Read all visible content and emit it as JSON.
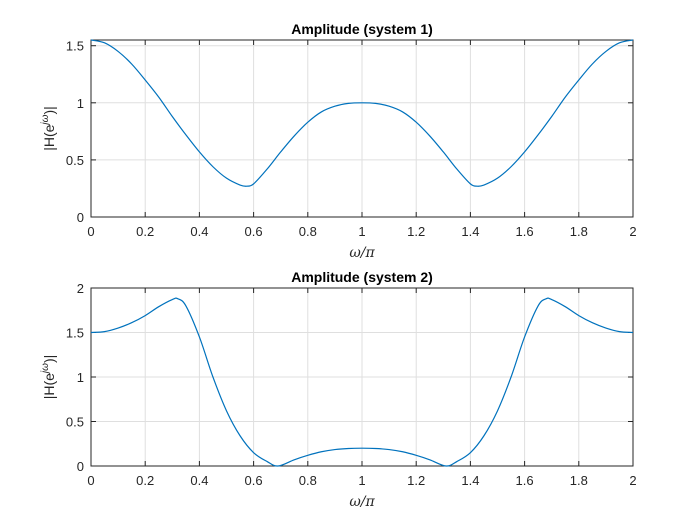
{
  "chart_data": [
    {
      "type": "line",
      "title": "Amplitude (system 1)",
      "xlabel_main": "ω/π",
      "ylabel_main": "|H(e",
      "ylabel_sup": "jω",
      "ylabel_tail": ")|",
      "xlim": [
        0,
        2
      ],
      "ylim": [
        0,
        1.55
      ],
      "xticks": [
        0,
        0.2,
        0.4,
        0.6,
        0.8,
        1,
        1.2,
        1.4,
        1.6,
        1.8,
        2
      ],
      "xtick_labels": [
        "0",
        "0.2",
        "0.4",
        "0.6",
        "0.8",
        "1",
        "1.2",
        "1.4",
        "1.6",
        "1.8",
        "2"
      ],
      "yticks": [
        0,
        0.5,
        1,
        1.5
      ],
      "ytick_labels": [
        "0",
        "0.5",
        "1",
        "1.5"
      ],
      "grid": true,
      "color": "#0072bd",
      "series": [
        {
          "x": [
            0,
            0.05,
            0.1,
            0.15,
            0.2,
            0.25,
            0.3,
            0.35,
            0.4,
            0.45,
            0.5,
            0.55,
            0.575,
            0.6,
            0.65,
            0.7,
            0.75,
            0.8,
            0.85,
            0.9,
            0.95,
            1.0,
            1.05,
            1.1,
            1.15,
            1.2,
            1.25,
            1.3,
            1.35,
            1.4,
            1.425,
            1.45,
            1.5,
            1.55,
            1.6,
            1.65,
            1.7,
            1.75,
            1.8,
            1.85,
            1.9,
            1.95,
            2.0
          ],
          "y": [
            1.55,
            1.525,
            1.45,
            1.34,
            1.2,
            1.05,
            0.88,
            0.72,
            0.57,
            0.44,
            0.34,
            0.28,
            0.27,
            0.29,
            0.42,
            0.57,
            0.71,
            0.83,
            0.92,
            0.97,
            0.995,
            1.0,
            0.995,
            0.97,
            0.92,
            0.83,
            0.71,
            0.57,
            0.42,
            0.29,
            0.27,
            0.28,
            0.34,
            0.44,
            0.57,
            0.72,
            0.88,
            1.05,
            1.2,
            1.34,
            1.45,
            1.525,
            1.55
          ]
        }
      ]
    },
    {
      "type": "line",
      "title": "Amplitude (system 2)",
      "xlabel_main": "ω/π",
      "ylabel_main": "|H(e",
      "ylabel_sup": "jω",
      "ylabel_tail": ")|",
      "xlim": [
        0,
        2
      ],
      "ylim": [
        0,
        2
      ],
      "xticks": [
        0,
        0.2,
        0.4,
        0.6,
        0.8,
        1,
        1.2,
        1.4,
        1.6,
        1.8,
        2
      ],
      "xtick_labels": [
        "0",
        "0.2",
        "0.4",
        "0.6",
        "0.8",
        "1",
        "1.2",
        "1.4",
        "1.6",
        "1.8",
        "2"
      ],
      "yticks": [
        0,
        0.5,
        1,
        1.5,
        2
      ],
      "ytick_labels": [
        "0",
        "0.5",
        "1",
        "1.5",
        "2"
      ],
      "grid": true,
      "color": "#0072bd",
      "series": [
        {
          "x": [
            0,
            0.05,
            0.1,
            0.15,
            0.2,
            0.25,
            0.3,
            0.32,
            0.35,
            0.4,
            0.45,
            0.5,
            0.55,
            0.6,
            0.65,
            0.69,
            0.75,
            0.8,
            0.85,
            0.9,
            0.95,
            1.0,
            1.05,
            1.1,
            1.15,
            1.2,
            1.25,
            1.31,
            1.35,
            1.4,
            1.45,
            1.5,
            1.55,
            1.6,
            1.65,
            1.68,
            1.7,
            1.75,
            1.8,
            1.85,
            1.9,
            1.95,
            2.0
          ],
          "y": [
            1.5,
            1.51,
            1.55,
            1.61,
            1.69,
            1.79,
            1.87,
            1.88,
            1.8,
            1.45,
            1.0,
            0.62,
            0.34,
            0.15,
            0.05,
            0.0,
            0.07,
            0.12,
            0.16,
            0.185,
            0.197,
            0.2,
            0.197,
            0.185,
            0.16,
            0.12,
            0.07,
            0.0,
            0.05,
            0.15,
            0.34,
            0.62,
            1.0,
            1.45,
            1.8,
            1.88,
            1.87,
            1.79,
            1.69,
            1.61,
            1.55,
            1.51,
            1.5
          ]
        }
      ]
    }
  ]
}
